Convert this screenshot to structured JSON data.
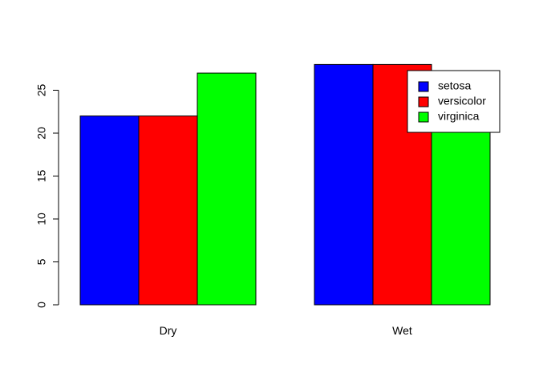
{
  "chart_data": {
    "type": "bar",
    "categories": [
      "Dry",
      "Wet"
    ],
    "series": [
      {
        "name": "setosa",
        "values": [
          22,
          28
        ],
        "color": "#0000ff"
      },
      {
        "name": "versicolor",
        "values": [
          22,
          28
        ],
        "color": "#ff0000"
      },
      {
        "name": "virginica",
        "values": [
          27,
          22
        ],
        "color": "#00ff00"
      }
    ],
    "yticks": [
      0,
      5,
      10,
      15,
      20,
      25
    ],
    "ylim": [
      0,
      28
    ],
    "grid": false,
    "legend_position": "top-right",
    "title": "",
    "xlabel": "",
    "ylabel": ""
  }
}
